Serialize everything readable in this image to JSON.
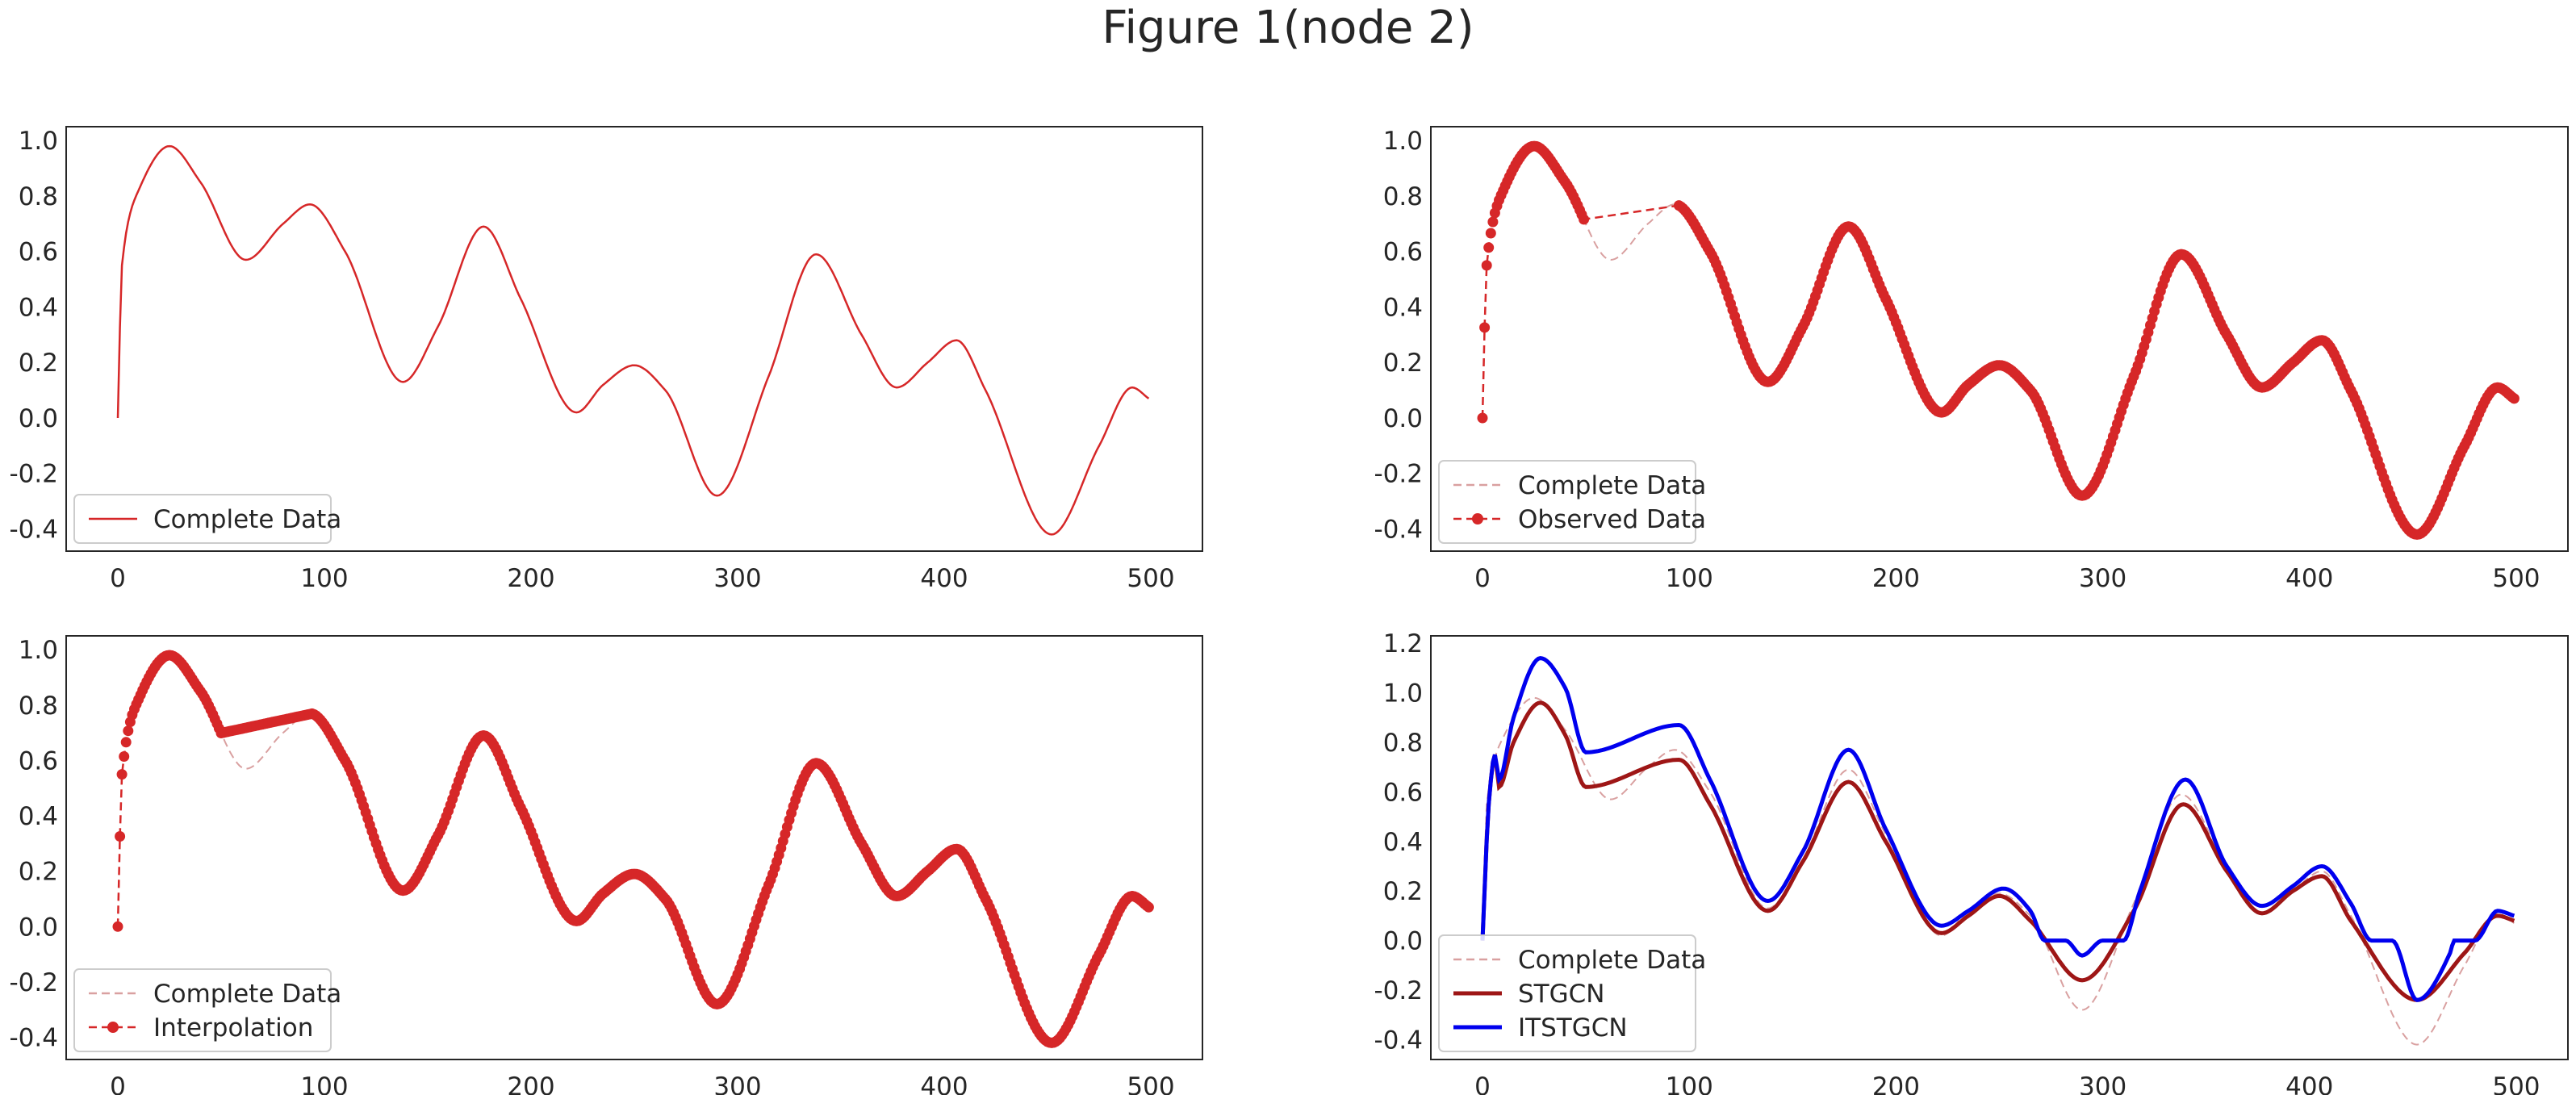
{
  "figure": {
    "title": "Figure 1(node 2)"
  },
  "colors": {
    "complete_solid": "#d62728",
    "complete_dashed": "#d9a0a0",
    "observed": "#d62728",
    "stgcn": "#9e1616",
    "itstgcn": "#0000ee"
  },
  "chart_data": [
    {
      "type": "line",
      "panel": "top-left",
      "xlim": [
        -25,
        525
      ],
      "ylim": [
        -0.48,
        1.05
      ],
      "xticks": [
        0,
        100,
        200,
        300,
        400,
        500
      ],
      "yticks": [
        -0.4,
        -0.2,
        0.0,
        0.2,
        0.4,
        0.6,
        0.8,
        1.0
      ],
      "x_range": [
        0,
        499
      ],
      "legend_position": "lower-left",
      "series": [
        {
          "name": "Complete Data",
          "style": "solid",
          "color": "#d62728",
          "source": "complete"
        }
      ]
    },
    {
      "type": "line",
      "panel": "top-right",
      "xlim": [
        -25,
        525
      ],
      "ylim": [
        -0.48,
        1.05
      ],
      "xticks": [
        0,
        100,
        200,
        300,
        400,
        500
      ],
      "yticks": [
        -0.4,
        -0.2,
        0.0,
        0.2,
        0.4,
        0.6,
        0.8,
        1.0
      ],
      "x_range": [
        0,
        499
      ],
      "missing_x": [
        50,
        94
      ],
      "legend_position": "lower-left",
      "series": [
        {
          "name": "Complete Data",
          "style": "dashed",
          "color": "#d9a0a0",
          "source": "complete"
        },
        {
          "name": "Observed Data",
          "style": "dashed-markers",
          "color": "#d62728",
          "source": "observed"
        }
      ]
    },
    {
      "type": "line",
      "panel": "bottom-left",
      "xlim": [
        -25,
        525
      ],
      "ylim": [
        -0.48,
        1.05
      ],
      "xticks": [
        0,
        100,
        200,
        300,
        400,
        500
      ],
      "yticks": [
        -0.4,
        -0.2,
        0.0,
        0.2,
        0.4,
        0.6,
        0.8,
        1.0
      ],
      "x_range": [
        0,
        499
      ],
      "missing_x": [
        50,
        94
      ],
      "legend_position": "lower-left",
      "series": [
        {
          "name": "Complete Data",
          "style": "dashed",
          "color": "#d9a0a0",
          "source": "complete"
        },
        {
          "name": "Interpolation",
          "style": "dashed-markers",
          "color": "#d62728",
          "source": "interpolation"
        }
      ]
    },
    {
      "type": "line",
      "panel": "bottom-right",
      "xlim": [
        -25,
        525
      ],
      "ylim": [
        -0.48,
        1.23
      ],
      "xticks": [
        0,
        100,
        200,
        300,
        400,
        500
      ],
      "yticks": [
        -0.4,
        -0.2,
        0.0,
        0.2,
        0.4,
        0.6,
        0.8,
        1.0,
        1.2
      ],
      "x_range": [
        0,
        499
      ],
      "missing_x": [
        50,
        94
      ],
      "legend_position": "lower-left",
      "series": [
        {
          "name": "Complete Data",
          "style": "dashed",
          "color": "#d9a0a0",
          "source": "complete"
        },
        {
          "name": "STGCN",
          "style": "solid-thick",
          "color": "#9e1616",
          "source": "stgcn"
        },
        {
          "name": "ITSTGCN",
          "style": "solid-thick",
          "color": "#0000ee",
          "source": "itstgcn"
        }
      ]
    }
  ],
  "complete_curve_points": [
    [
      0,
      0.0
    ],
    [
      2,
      0.55
    ],
    [
      10,
      0.82
    ],
    [
      25,
      0.98
    ],
    [
      40,
      0.85
    ],
    [
      62,
      0.57
    ],
    [
      80,
      0.7
    ],
    [
      93,
      0.77
    ],
    [
      110,
      0.6
    ],
    [
      138,
      0.13
    ],
    [
      155,
      0.33
    ],
    [
      177,
      0.69
    ],
    [
      195,
      0.43
    ],
    [
      222,
      0.02
    ],
    [
      235,
      0.12
    ],
    [
      250,
      0.19
    ],
    [
      265,
      0.1
    ],
    [
      290,
      -0.28
    ],
    [
      315,
      0.15
    ],
    [
      338,
      0.59
    ],
    [
      360,
      0.3
    ],
    [
      377,
      0.11
    ],
    [
      392,
      0.2
    ],
    [
      406,
      0.28
    ],
    [
      420,
      0.1
    ],
    [
      452,
      -0.42
    ],
    [
      475,
      -0.1
    ],
    [
      491,
      0.11
    ],
    [
      499,
      0.07
    ]
  ],
  "stgcn_points": [
    [
      0,
      0.0
    ],
    [
      3,
      0.55
    ],
    [
      6,
      0.75
    ],
    [
      8,
      0.62
    ],
    [
      15,
      0.8
    ],
    [
      28,
      0.96
    ],
    [
      40,
      0.83
    ],
    [
      50,
      0.62
    ],
    [
      95,
      0.73
    ],
    [
      110,
      0.55
    ],
    [
      138,
      0.12
    ],
    [
      155,
      0.32
    ],
    [
      177,
      0.64
    ],
    [
      195,
      0.4
    ],
    [
      222,
      0.03
    ],
    [
      235,
      0.1
    ],
    [
      250,
      0.18
    ],
    [
      265,
      0.08
    ],
    [
      290,
      -0.16
    ],
    [
      315,
      0.12
    ],
    [
      339,
      0.55
    ],
    [
      360,
      0.28
    ],
    [
      377,
      0.11
    ],
    [
      392,
      0.2
    ],
    [
      406,
      0.26
    ],
    [
      420,
      0.08
    ],
    [
      452,
      -0.24
    ],
    [
      475,
      -0.05
    ],
    [
      491,
      0.1
    ],
    [
      499,
      0.08
    ]
  ],
  "itstgcn_points": [
    [
      0,
      0.0
    ],
    [
      3,
      0.55
    ],
    [
      6,
      0.75
    ],
    [
      8,
      0.65
    ],
    [
      15,
      0.9
    ],
    [
      28,
      1.14
    ],
    [
      40,
      1.02
    ],
    [
      50,
      0.76
    ],
    [
      95,
      0.87
    ],
    [
      110,
      0.65
    ],
    [
      138,
      0.16
    ],
    [
      155,
      0.36
    ],
    [
      177,
      0.77
    ],
    [
      195,
      0.45
    ],
    [
      222,
      0.06
    ],
    [
      235,
      0.12
    ],
    [
      252,
      0.21
    ],
    [
      265,
      0.12
    ],
    [
      272,
      0.0
    ],
    [
      282,
      0.0
    ],
    [
      290,
      -0.06
    ],
    [
      300,
      0.0
    ],
    [
      310,
      0.0
    ],
    [
      318,
      0.2
    ],
    [
      340,
      0.65
    ],
    [
      360,
      0.3
    ],
    [
      377,
      0.14
    ],
    [
      392,
      0.22
    ],
    [
      406,
      0.3
    ],
    [
      420,
      0.15
    ],
    [
      430,
      0.0
    ],
    [
      440,
      0.0
    ],
    [
      452,
      -0.24
    ],
    [
      468,
      -0.05
    ],
    [
      470,
      0.0
    ],
    [
      480,
      0.0
    ],
    [
      491,
      0.12
    ],
    [
      499,
      0.1
    ]
  ]
}
